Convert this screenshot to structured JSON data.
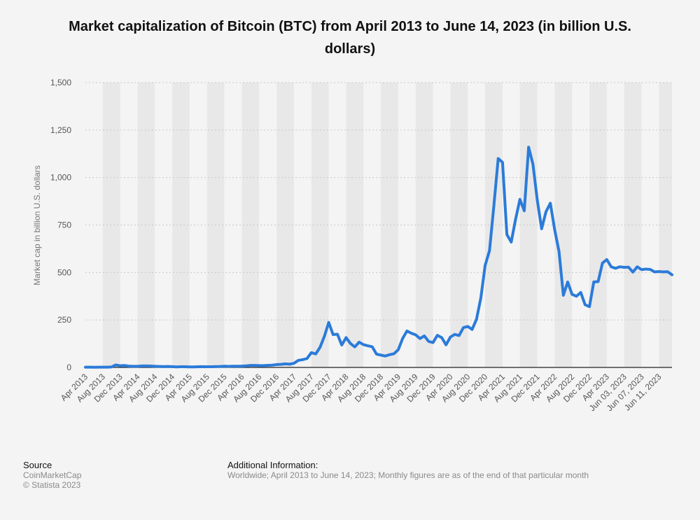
{
  "chart_data": {
    "type": "line",
    "title": "Market capitalization of Bitcoin (BTC) from April 2013 to June 14, 2023 (in billion U.S. dollars)",
    "ylabel": "Market cap in billion U.S. dollars",
    "xlabel": "",
    "ylim": [
      0,
      1500
    ],
    "yticks": [
      0,
      250,
      500,
      750,
      1000,
      1250,
      1500
    ],
    "ytick_labels": [
      "0",
      "250",
      "500",
      "750",
      "1,000",
      "1,250",
      "1,500"
    ],
    "grid": true,
    "x_tick_labels": [
      "Apr 2013",
      "Aug 2013",
      "Dec 2013",
      "Apr 2014",
      "Aug 2014",
      "Dec 2014",
      "Apr 2015",
      "Aug 2015",
      "Dec 2015",
      "Apr 2016",
      "Aug 2016",
      "Dec 2016",
      "Apr 2017",
      "Aug 2017",
      "Dec 2017",
      "Apr 2018",
      "Aug 2018",
      "Dec 2018",
      "Apr 2019",
      "Aug 2019",
      "Dec 2019",
      "Apr 2020",
      "Aug 2020",
      "Dec 2020",
      "Apr 2021",
      "Aug 2021",
      "Dec 2021",
      "Apr 2022",
      "Aug 2022",
      "Dec 2022",
      "Apr 2023",
      "Jun 03, 2023",
      "Jun 07, 2023",
      "Jun 11, 2023"
    ],
    "series": [
      {
        "name": "",
        "color": "#2b7bd9",
        "points": [
          [
            "Apr 2013",
            1.5
          ],
          [
            "May 2013",
            1.5
          ],
          [
            "Jun 2013",
            1.1
          ],
          [
            "Jul 2013",
            1.2
          ],
          [
            "Aug 2013",
            1.6
          ],
          [
            "Sep 2013",
            1.6
          ],
          [
            "Oct 2013",
            2.4
          ],
          [
            "Nov 2013",
            13
          ],
          [
            "Dec 2013",
            9
          ],
          [
            "Jan 2014",
            10
          ],
          [
            "Feb 2014",
            7
          ],
          [
            "Mar 2014",
            6
          ],
          [
            "Apr 2014",
            6
          ],
          [
            "May 2014",
            8
          ],
          [
            "Jun 2014",
            8
          ],
          [
            "Jul 2014",
            7.5
          ],
          [
            "Aug 2014",
            6
          ],
          [
            "Sep 2014",
            5
          ],
          [
            "Oct 2014",
            4.5
          ],
          [
            "Nov 2014",
            5
          ],
          [
            "Dec 2014",
            4
          ],
          [
            "Jan 2015",
            3
          ],
          [
            "Feb 2015",
            3.5
          ],
          [
            "Mar 2015",
            3.5
          ],
          [
            "Apr 2015",
            3
          ],
          [
            "May 2015",
            3
          ],
          [
            "Jun 2015",
            3.5
          ],
          [
            "Jul 2015",
            4
          ],
          [
            "Aug 2015",
            3.5
          ],
          [
            "Sep 2015",
            3.5
          ],
          [
            "Oct 2015",
            4.5
          ],
          [
            "Nov 2015",
            5
          ],
          [
            "Dec 2015",
            6.4
          ],
          [
            "Jan 2016",
            5.6
          ],
          [
            "Feb 2016",
            6.4
          ],
          [
            "Mar 2016",
            6.4
          ],
          [
            "Apr 2016",
            7
          ],
          [
            "May 2016",
            8.5
          ],
          [
            "Jun 2016",
            10.5
          ],
          [
            "Jul 2016",
            10.5
          ],
          [
            "Aug 2016",
            9.5
          ],
          [
            "Sep 2016",
            9.5
          ],
          [
            "Oct 2016",
            11
          ],
          [
            "Nov 2016",
            12
          ],
          [
            "Dec 2016",
            15
          ],
          [
            "Jan 2017",
            16
          ],
          [
            "Feb 2017",
            19
          ],
          [
            "Mar 2017",
            17
          ],
          [
            "Apr 2017",
            22
          ],
          [
            "May 2017",
            37
          ],
          [
            "Jun 2017",
            41
          ],
          [
            "Jul 2017",
            47
          ],
          [
            "Aug 2017",
            78
          ],
          [
            "Sep 2017",
            71
          ],
          [
            "Oct 2017",
            106
          ],
          [
            "Nov 2017",
            164
          ],
          [
            "Dec 2017",
            237
          ],
          [
            "Jan 2018",
            173
          ],
          [
            "Feb 2018",
            175
          ],
          [
            "Mar 2018",
            118
          ],
          [
            "Apr 2018",
            157
          ],
          [
            "May 2018",
            126
          ],
          [
            "Jun 2018",
            108
          ],
          [
            "Jul 2018",
            133
          ],
          [
            "Aug 2018",
            120
          ],
          [
            "Sep 2018",
            114
          ],
          [
            "Oct 2018",
            109
          ],
          [
            "Nov 2018",
            70
          ],
          [
            "Dec 2018",
            65
          ],
          [
            "Jan 2019",
            60
          ],
          [
            "Feb 2019",
            67
          ],
          [
            "Mar 2019",
            72
          ],
          [
            "Apr 2019",
            93
          ],
          [
            "May 2019",
            152
          ],
          [
            "Jun 2019",
            192
          ],
          [
            "Jul 2019",
            180
          ],
          [
            "Aug 2019",
            172
          ],
          [
            "Sep 2019",
            152
          ],
          [
            "Oct 2019",
            166
          ],
          [
            "Nov 2019",
            137
          ],
          [
            "Dec 2019",
            131
          ],
          [
            "Jan 2020",
            169
          ],
          [
            "Feb 2020",
            157
          ],
          [
            "Mar 2020",
            119
          ],
          [
            "Apr 2020",
            160
          ],
          [
            "May 2020",
            174
          ],
          [
            "Jun 2020",
            168
          ],
          [
            "Jul 2020",
            210
          ],
          [
            "Aug 2020",
            216
          ],
          [
            "Sep 2020",
            200
          ],
          [
            "Oct 2020",
            253
          ],
          [
            "Nov 2020",
            365
          ],
          [
            "Dec 2020",
            538
          ],
          [
            "Jan 2021",
            615
          ],
          [
            "Feb 2021",
            850
          ],
          [
            "Mar 2021",
            1100
          ],
          [
            "Apr 2021",
            1080
          ],
          [
            "May 2021",
            700
          ],
          [
            "Jun 2021",
            660
          ],
          [
            "Jul 2021",
            780
          ],
          [
            "Aug 2021",
            885
          ],
          [
            "Sep 2021",
            825
          ],
          [
            "Oct 2021",
            1160
          ],
          [
            "Nov 2021",
            1070
          ],
          [
            "Dec 2021",
            880
          ],
          [
            "Jan 2022",
            730
          ],
          [
            "Feb 2022",
            820
          ],
          [
            "Mar 2022",
            865
          ],
          [
            "Apr 2022",
            725
          ],
          [
            "May 2022",
            610
          ],
          [
            "Jun 2022",
            380
          ],
          [
            "Jul 2022",
            450
          ],
          [
            "Aug 2022",
            385
          ],
          [
            "Sep 2022",
            375
          ],
          [
            "Oct 2022",
            395
          ],
          [
            "Nov 2022",
            330
          ],
          [
            "Dec 2022",
            320
          ],
          [
            "Jan 2023",
            450
          ],
          [
            "Feb 2023",
            452
          ],
          [
            "Mar 2023",
            550
          ],
          [
            "Apr 2023",
            568
          ],
          [
            "May 2023",
            530
          ],
          [
            "Jun 01, 2023",
            522
          ],
          [
            "Jun 02, 2023",
            530
          ],
          [
            "Jun 03, 2023",
            527
          ],
          [
            "Jun 04, 2023",
            528
          ],
          [
            "Jun 05, 2023",
            502
          ],
          [
            "Jun 06, 2023",
            530
          ],
          [
            "Jun 07, 2023",
            515
          ],
          [
            "Jun 08, 2023",
            518
          ],
          [
            "Jun 09, 2023",
            516
          ],
          [
            "Jun 10, 2023",
            503
          ],
          [
            "Jun 11, 2023",
            505
          ],
          [
            "Jun 12, 2023",
            503
          ],
          [
            "Jun 13, 2023",
            504
          ],
          [
            "Jun 14, 2023",
            488
          ]
        ]
      }
    ]
  },
  "footer": {
    "source_heading": "Source",
    "source_name": "CoinMarketCap",
    "copyright": "© Statista 2023",
    "additional_heading": "Additional Information:",
    "additional_text": "Worldwide; April 2013 to June 14, 2023; Monthly figures are as of the end of that particular month"
  },
  "colors": {
    "line": "#2b7bd9",
    "band_light": "#f4f4f4",
    "band_dark": "#e8e8e8",
    "grid": "#c8c8c8",
    "tick_text": "#555555"
  }
}
